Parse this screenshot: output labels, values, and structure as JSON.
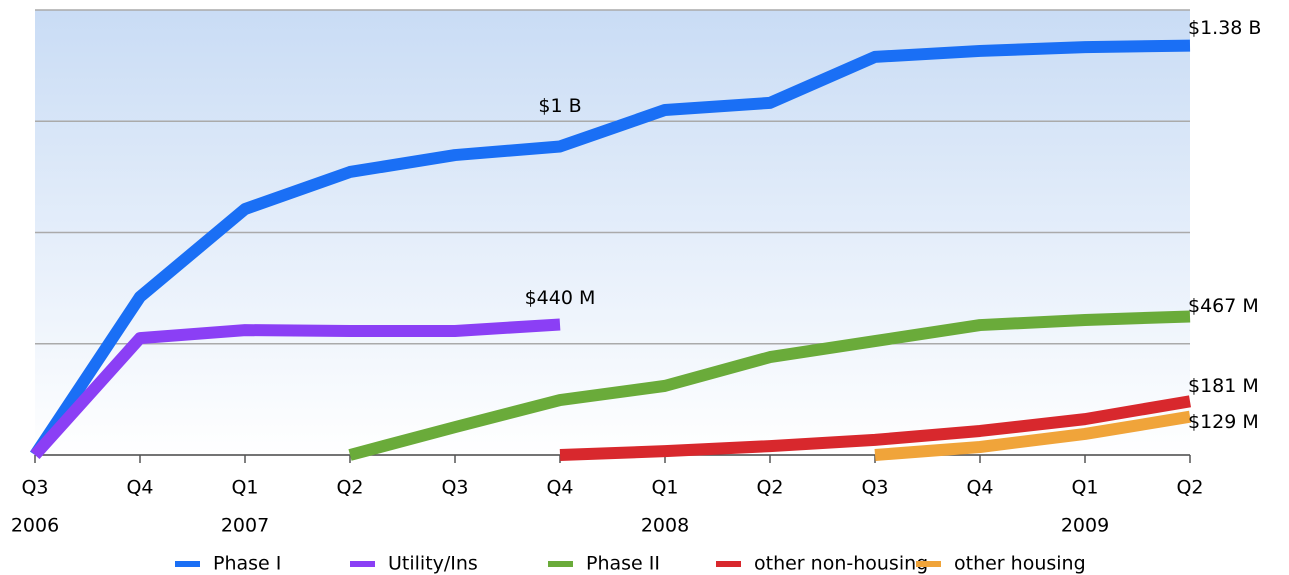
{
  "chart_data": {
    "type": "line",
    "categories": [
      "Q3",
      "Q4",
      "Q1",
      "Q2",
      "Q3",
      "Q4",
      "Q1",
      "Q2",
      "Q3",
      "Q4",
      "Q1",
      "Q2"
    ],
    "year_labels": [
      "2006",
      null,
      "2007",
      null,
      null,
      null,
      "2008",
      null,
      null,
      null,
      "2009",
      null
    ],
    "ylim": [
      0,
      1500
    ],
    "yticks": [
      0,
      375,
      750,
      1125,
      1500
    ],
    "grid": true,
    "series": [
      {
        "name": "Phase I",
        "color": "#1a6ff5",
        "values": [
          0,
          533,
          829,
          954,
          1011,
          1040,
          1163,
          1187,
          1342,
          1362,
          1375,
          1380
        ],
        "value_labels": [
          null,
          null,
          null,
          null,
          null,
          "$1 B",
          null,
          null,
          null,
          null,
          null,
          "$1.38 B"
        ]
      },
      {
        "name": "Utility/Ins",
        "color": "#8b3ff5",
        "values": [
          0,
          394,
          421,
          418,
          418,
          440,
          null,
          null,
          null,
          null,
          null,
          null
        ],
        "value_labels": [
          null,
          null,
          null,
          null,
          null,
          "$440 M",
          null,
          null,
          null,
          null,
          null,
          null
        ]
      },
      {
        "name": "Phase II",
        "color": "#6aab3a",
        "values": [
          null,
          null,
          null,
          0,
          94,
          185,
          233,
          330,
          384,
          438,
          455,
          467
        ],
        "value_labels": [
          null,
          null,
          null,
          null,
          null,
          null,
          null,
          null,
          null,
          null,
          null,
          "$467 M"
        ]
      },
      {
        "name": "other non-housing",
        "color": "#d8282d",
        "values": [
          null,
          null,
          null,
          null,
          null,
          0,
          13,
          30,
          51,
          81,
          121,
          181
        ],
        "value_labels": [
          null,
          null,
          null,
          null,
          null,
          null,
          null,
          null,
          null,
          null,
          null,
          "$181 M"
        ]
      },
      {
        "name": "other housing",
        "color": "#f0a43a",
        "values": [
          null,
          null,
          null,
          null,
          null,
          null,
          null,
          null,
          0,
          27,
          71,
          129
        ],
        "value_labels": [
          null,
          null,
          null,
          null,
          null,
          null,
          null,
          null,
          null,
          null,
          null,
          "$129 M"
        ]
      }
    ]
  }
}
